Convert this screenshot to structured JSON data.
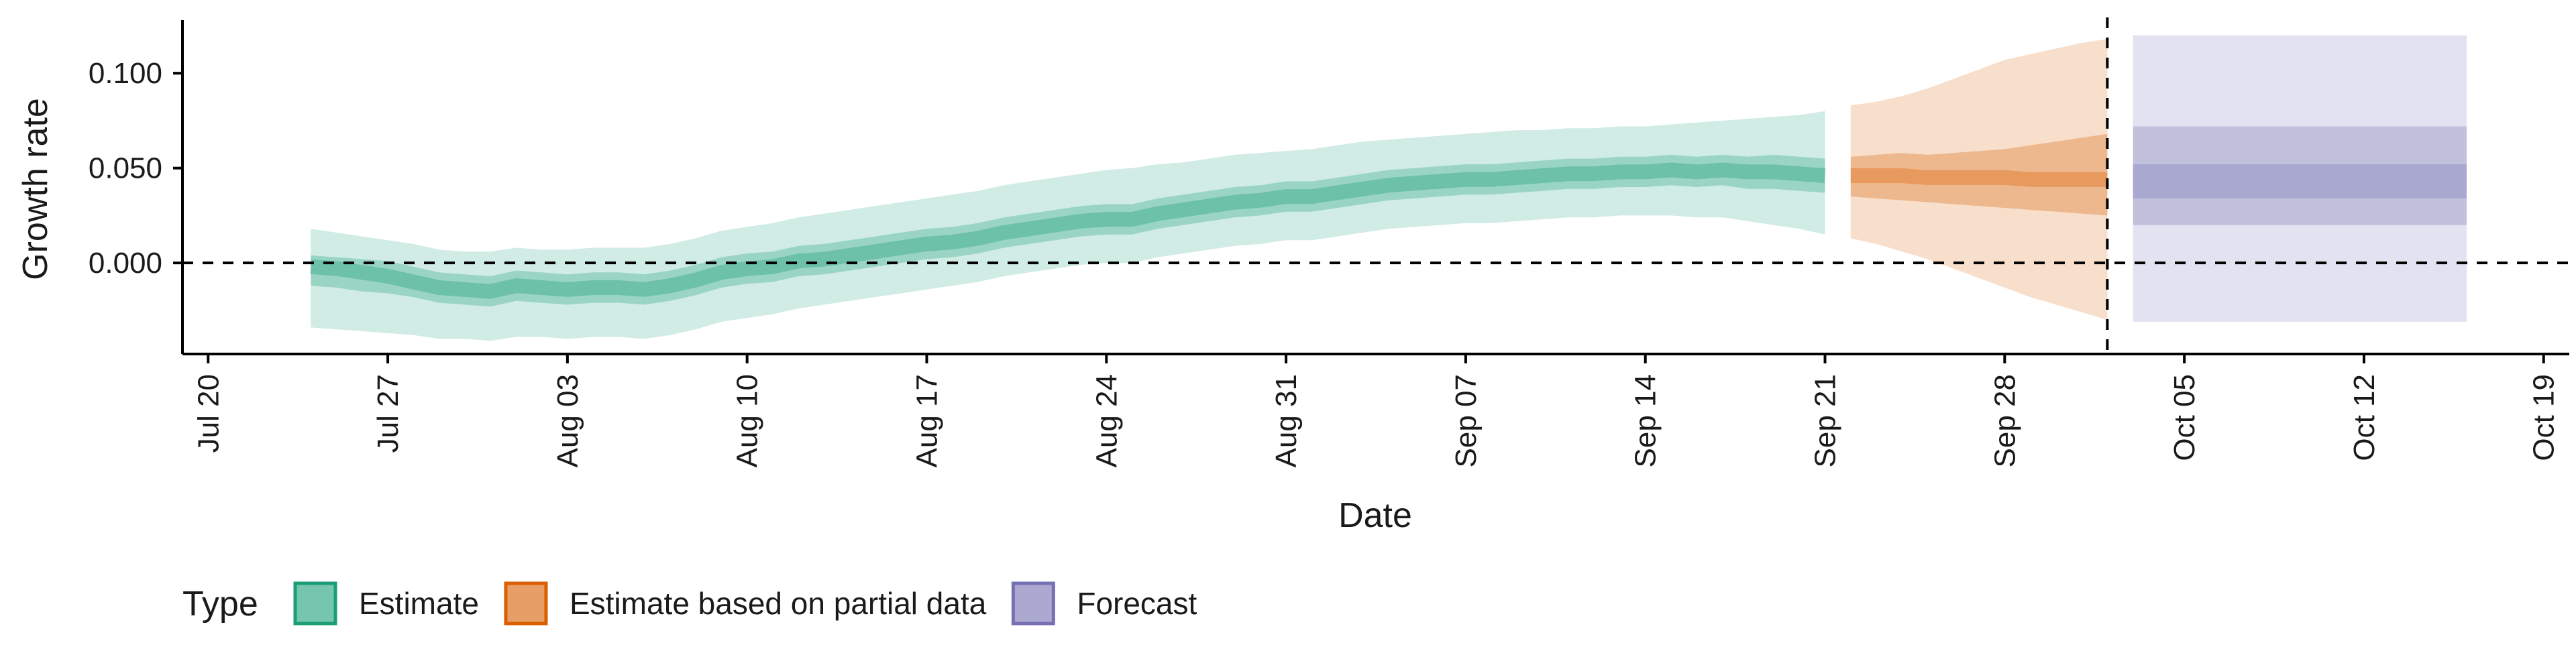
{
  "chart_data": {
    "type": "area",
    "xlabel": "Date",
    "ylabel": "Growth rate",
    "xlim": [
      "2020-07-19",
      "2020-10-20"
    ],
    "ylim": [
      -0.048,
      0.128
    ],
    "x_ticks": [
      "2020-07-20",
      "2020-07-27",
      "2020-08-03",
      "2020-08-10",
      "2020-08-17",
      "2020-08-24",
      "2020-08-31",
      "2020-09-07",
      "2020-09-14",
      "2020-09-21",
      "2020-09-28",
      "2020-10-05",
      "2020-10-12",
      "2020-10-19"
    ],
    "x_tick_labels": [
      "Jul 20",
      "Jul 27",
      "Aug 03",
      "Aug 10",
      "Aug 17",
      "Aug 24",
      "Aug 31",
      "Sep 07",
      "Sep 14",
      "Sep 21",
      "Sep 28",
      "Oct 05",
      "Oct 12",
      "Oct 19"
    ],
    "y_ticks": [
      0.0,
      0.05,
      0.1
    ],
    "y_tick_labels": [
      "0.000",
      "0.050",
      "0.100"
    ],
    "reference_lines": {
      "hline_y": 0,
      "vline_date": "2020-10-02"
    },
    "grid": false,
    "legend": {
      "title": "Type",
      "position": "bottom-left",
      "entries": [
        {
          "label": "Estimate",
          "color": "#1b9e77"
        },
        {
          "label": "Estimate based on partial data",
          "color": "#d95f02"
        },
        {
          "label": "Forecast",
          "color": "#7570b3"
        }
      ]
    },
    "series": [
      {
        "name": "Estimate",
        "color": "#1b9e77",
        "points": [
          {
            "date": "2020-07-24",
            "median": -0.002,
            "lower_90": -0.034,
            "upper_90": 0.018,
            "lower_50": -0.012,
            "upper_50": 0.004
          },
          {
            "date": "2020-07-25",
            "median": -0.003,
            "lower_90": -0.035,
            "upper_90": 0.016,
            "lower_50": -0.013,
            "upper_50": 0.003
          },
          {
            "date": "2020-07-26",
            "median": -0.005,
            "lower_90": -0.036,
            "upper_90": 0.014,
            "lower_50": -0.015,
            "upper_50": 0.002
          },
          {
            "date": "2020-07-27",
            "median": -0.007,
            "lower_90": -0.037,
            "upper_90": 0.012,
            "lower_50": -0.016,
            "upper_50": 0.001
          },
          {
            "date": "2020-07-28",
            "median": -0.01,
            "lower_90": -0.038,
            "upper_90": 0.01,
            "lower_50": -0.018,
            "upper_50": -0.002
          },
          {
            "date": "2020-07-29",
            "median": -0.013,
            "lower_90": -0.04,
            "upper_90": 0.007,
            "lower_50": -0.021,
            "upper_50": -0.005
          },
          {
            "date": "2020-07-30",
            "median": -0.014,
            "lower_90": -0.04,
            "upper_90": 0.006,
            "lower_50": -0.022,
            "upper_50": -0.006
          },
          {
            "date": "2020-07-31",
            "median": -0.015,
            "lower_90": -0.041,
            "upper_90": 0.006,
            "lower_50": -0.023,
            "upper_50": -0.007
          },
          {
            "date": "2020-08-01",
            "median": -0.012,
            "lower_90": -0.039,
            "upper_90": 0.008,
            "lower_50": -0.02,
            "upper_50": -0.004
          },
          {
            "date": "2020-08-02",
            "median": -0.013,
            "lower_90": -0.039,
            "upper_90": 0.007,
            "lower_50": -0.021,
            "upper_50": -0.005
          },
          {
            "date": "2020-08-03",
            "median": -0.014,
            "lower_90": -0.04,
            "upper_90": 0.007,
            "lower_50": -0.022,
            "upper_50": -0.006
          },
          {
            "date": "2020-08-04",
            "median": -0.013,
            "lower_90": -0.039,
            "upper_90": 0.008,
            "lower_50": -0.021,
            "upper_50": -0.005
          },
          {
            "date": "2020-08-05",
            "median": -0.013,
            "lower_90": -0.039,
            "upper_90": 0.008,
            "lower_50": -0.021,
            "upper_50": -0.005
          },
          {
            "date": "2020-08-06",
            "median": -0.014,
            "lower_90": -0.04,
            "upper_90": 0.008,
            "lower_50": -0.022,
            "upper_50": -0.006
          },
          {
            "date": "2020-08-07",
            "median": -0.012,
            "lower_90": -0.038,
            "upper_90": 0.01,
            "lower_50": -0.02,
            "upper_50": -0.004
          },
          {
            "date": "2020-08-08",
            "median": -0.009,
            "lower_90": -0.035,
            "upper_90": 0.013,
            "lower_50": -0.017,
            "upper_50": -0.001
          },
          {
            "date": "2020-08-09",
            "median": -0.005,
            "lower_90": -0.031,
            "upper_90": 0.017,
            "lower_50": -0.013,
            "upper_50": 0.003
          },
          {
            "date": "2020-08-10",
            "median": -0.003,
            "lower_90": -0.029,
            "upper_90": 0.019,
            "lower_50": -0.011,
            "upper_50": 0.005
          },
          {
            "date": "2020-08-11",
            "median": -0.002,
            "lower_90": -0.027,
            "upper_90": 0.021,
            "lower_50": -0.01,
            "upper_50": 0.006
          },
          {
            "date": "2020-08-12",
            "median": 0.001,
            "lower_90": -0.024,
            "upper_90": 0.024,
            "lower_50": -0.007,
            "upper_50": 0.009
          },
          {
            "date": "2020-08-13",
            "median": 0.002,
            "lower_90": -0.022,
            "upper_90": 0.026,
            "lower_50": -0.006,
            "upper_50": 0.01
          },
          {
            "date": "2020-08-14",
            "median": 0.004,
            "lower_90": -0.02,
            "upper_90": 0.028,
            "lower_50": -0.004,
            "upper_50": 0.012
          },
          {
            "date": "2020-08-15",
            "median": 0.006,
            "lower_90": -0.018,
            "upper_90": 0.03,
            "lower_50": -0.002,
            "upper_50": 0.014
          },
          {
            "date": "2020-08-16",
            "median": 0.008,
            "lower_90": -0.016,
            "upper_90": 0.032,
            "lower_50": 0.0,
            "upper_50": 0.016
          },
          {
            "date": "2020-08-17",
            "median": 0.01,
            "lower_90": -0.014,
            "upper_90": 0.034,
            "lower_50": 0.002,
            "upper_50": 0.018
          },
          {
            "date": "2020-08-18",
            "median": 0.011,
            "lower_90": -0.012,
            "upper_90": 0.036,
            "lower_50": 0.003,
            "upper_50": 0.019
          },
          {
            "date": "2020-08-19",
            "median": 0.013,
            "lower_90": -0.01,
            "upper_90": 0.038,
            "lower_50": 0.005,
            "upper_50": 0.021
          },
          {
            "date": "2020-08-20",
            "median": 0.016,
            "lower_90": -0.007,
            "upper_90": 0.041,
            "lower_50": 0.008,
            "upper_50": 0.024
          },
          {
            "date": "2020-08-21",
            "median": 0.018,
            "lower_90": -0.005,
            "upper_90": 0.043,
            "lower_50": 0.01,
            "upper_50": 0.026
          },
          {
            "date": "2020-08-22",
            "median": 0.02,
            "lower_90": -0.003,
            "upper_90": 0.045,
            "lower_50": 0.012,
            "upper_50": 0.028
          },
          {
            "date": "2020-08-23",
            "median": 0.022,
            "lower_90": -0.001,
            "upper_90": 0.047,
            "lower_50": 0.014,
            "upper_50": 0.03
          },
          {
            "date": "2020-08-24",
            "median": 0.023,
            "lower_90": 0.0,
            "upper_90": 0.049,
            "lower_50": 0.015,
            "upper_50": 0.031
          },
          {
            "date": "2020-08-25",
            "median": 0.023,
            "lower_90": 0.0,
            "upper_90": 0.05,
            "lower_50": 0.015,
            "upper_50": 0.031
          },
          {
            "date": "2020-08-26",
            "median": 0.026,
            "lower_90": 0.003,
            "upper_90": 0.052,
            "lower_50": 0.018,
            "upper_50": 0.034
          },
          {
            "date": "2020-08-27",
            "median": 0.028,
            "lower_90": 0.005,
            "upper_90": 0.053,
            "lower_50": 0.02,
            "upper_50": 0.036
          },
          {
            "date": "2020-08-28",
            "median": 0.03,
            "lower_90": 0.007,
            "upper_90": 0.055,
            "lower_50": 0.022,
            "upper_50": 0.038
          },
          {
            "date": "2020-08-29",
            "median": 0.032,
            "lower_90": 0.009,
            "upper_90": 0.057,
            "lower_50": 0.024,
            "upper_50": 0.04
          },
          {
            "date": "2020-08-30",
            "median": 0.033,
            "lower_90": 0.01,
            "upper_90": 0.058,
            "lower_50": 0.025,
            "upper_50": 0.041
          },
          {
            "date": "2020-08-31",
            "median": 0.035,
            "lower_90": 0.012,
            "upper_90": 0.059,
            "lower_50": 0.027,
            "upper_50": 0.043
          },
          {
            "date": "2020-09-01",
            "median": 0.035,
            "lower_90": 0.012,
            "upper_90": 0.06,
            "lower_50": 0.027,
            "upper_50": 0.043
          },
          {
            "date": "2020-09-02",
            "median": 0.037,
            "lower_90": 0.014,
            "upper_90": 0.062,
            "lower_50": 0.029,
            "upper_50": 0.045
          },
          {
            "date": "2020-09-03",
            "median": 0.039,
            "lower_90": 0.016,
            "upper_90": 0.064,
            "lower_50": 0.031,
            "upper_50": 0.047
          },
          {
            "date": "2020-09-04",
            "median": 0.041,
            "lower_90": 0.018,
            "upper_90": 0.065,
            "lower_50": 0.033,
            "upper_50": 0.049
          },
          {
            "date": "2020-09-05",
            "median": 0.042,
            "lower_90": 0.019,
            "upper_90": 0.066,
            "lower_50": 0.034,
            "upper_50": 0.05
          },
          {
            "date": "2020-09-06",
            "median": 0.043,
            "lower_90": 0.02,
            "upper_90": 0.067,
            "lower_50": 0.035,
            "upper_50": 0.051
          },
          {
            "date": "2020-09-07",
            "median": 0.044,
            "lower_90": 0.021,
            "upper_90": 0.068,
            "lower_50": 0.036,
            "upper_50": 0.052
          },
          {
            "date": "2020-09-08",
            "median": 0.044,
            "lower_90": 0.021,
            "upper_90": 0.069,
            "lower_50": 0.036,
            "upper_50": 0.052
          },
          {
            "date": "2020-09-09",
            "median": 0.045,
            "lower_90": 0.022,
            "upper_90": 0.07,
            "lower_50": 0.037,
            "upper_50": 0.053
          },
          {
            "date": "2020-09-10",
            "median": 0.046,
            "lower_90": 0.023,
            "upper_90": 0.07,
            "lower_50": 0.038,
            "upper_50": 0.054
          },
          {
            "date": "2020-09-11",
            "median": 0.047,
            "lower_90": 0.024,
            "upper_90": 0.071,
            "lower_50": 0.039,
            "upper_50": 0.055
          },
          {
            "date": "2020-09-12",
            "median": 0.047,
            "lower_90": 0.024,
            "upper_90": 0.071,
            "lower_50": 0.039,
            "upper_50": 0.055
          },
          {
            "date": "2020-09-13",
            "median": 0.048,
            "lower_90": 0.025,
            "upper_90": 0.072,
            "lower_50": 0.04,
            "upper_50": 0.056
          },
          {
            "date": "2020-09-14",
            "median": 0.048,
            "lower_90": 0.025,
            "upper_90": 0.072,
            "lower_50": 0.04,
            "upper_50": 0.056
          },
          {
            "date": "2020-09-15",
            "median": 0.049,
            "lower_90": 0.025,
            "upper_90": 0.073,
            "lower_50": 0.041,
            "upper_50": 0.057
          },
          {
            "date": "2020-09-16",
            "median": 0.048,
            "lower_90": 0.024,
            "upper_90": 0.074,
            "lower_50": 0.04,
            "upper_50": 0.056
          },
          {
            "date": "2020-09-17",
            "median": 0.049,
            "lower_90": 0.024,
            "upper_90": 0.075,
            "lower_50": 0.041,
            "upper_50": 0.057
          },
          {
            "date": "2020-09-18",
            "median": 0.048,
            "lower_90": 0.022,
            "upper_90": 0.076,
            "lower_50": 0.039,
            "upper_50": 0.056
          },
          {
            "date": "2020-09-19",
            "median": 0.048,
            "lower_90": 0.02,
            "upper_90": 0.077,
            "lower_50": 0.039,
            "upper_50": 0.057
          },
          {
            "date": "2020-09-20",
            "median": 0.047,
            "lower_90": 0.018,
            "upper_90": 0.078,
            "lower_50": 0.038,
            "upper_50": 0.056
          },
          {
            "date": "2020-09-21",
            "median": 0.046,
            "lower_90": 0.015,
            "upper_90": 0.08,
            "lower_50": 0.037,
            "upper_50": 0.055
          }
        ]
      },
      {
        "name": "Estimate based on partial data",
        "color": "#d95f02",
        "points": [
          {
            "date": "2020-09-22",
            "median": 0.046,
            "lower_90": 0.013,
            "upper_90": 0.083,
            "lower_50": 0.035,
            "upper_50": 0.056
          },
          {
            "date": "2020-09-23",
            "median": 0.046,
            "lower_90": 0.01,
            "upper_90": 0.085,
            "lower_50": 0.034,
            "upper_50": 0.057
          },
          {
            "date": "2020-09-24",
            "median": 0.046,
            "lower_90": 0.006,
            "upper_90": 0.088,
            "lower_50": 0.033,
            "upper_50": 0.058
          },
          {
            "date": "2020-09-25",
            "median": 0.045,
            "lower_90": 0.002,
            "upper_90": 0.092,
            "lower_50": 0.032,
            "upper_50": 0.057
          },
          {
            "date": "2020-09-26",
            "median": 0.045,
            "lower_90": -0.003,
            "upper_90": 0.097,
            "lower_50": 0.031,
            "upper_50": 0.058
          },
          {
            "date": "2020-09-27",
            "median": 0.045,
            "lower_90": -0.008,
            "upper_90": 0.102,
            "lower_50": 0.03,
            "upper_50": 0.059
          },
          {
            "date": "2020-09-28",
            "median": 0.045,
            "lower_90": -0.013,
            "upper_90": 0.107,
            "lower_50": 0.029,
            "upper_50": 0.06
          },
          {
            "date": "2020-09-29",
            "median": 0.044,
            "lower_90": -0.018,
            "upper_90": 0.11,
            "lower_50": 0.028,
            "upper_50": 0.062
          },
          {
            "date": "2020-09-30",
            "median": 0.044,
            "lower_90": -0.022,
            "upper_90": 0.113,
            "lower_50": 0.027,
            "upper_50": 0.064
          },
          {
            "date": "2020-10-01",
            "median": 0.044,
            "lower_90": -0.026,
            "upper_90": 0.116,
            "lower_50": 0.026,
            "upper_50": 0.066
          },
          {
            "date": "2020-10-02",
            "median": 0.044,
            "lower_90": -0.03,
            "upper_90": 0.118,
            "lower_50": 0.025,
            "upper_50": 0.068
          }
        ]
      },
      {
        "name": "Forecast",
        "color": "#7570b3",
        "points": [
          {
            "date": "2020-10-03",
            "median": 0.043,
            "lower_90": -0.031,
            "upper_90": 0.12,
            "lower_50": 0.02,
            "upper_50": 0.072,
            "lower_20": 0.034,
            "upper_20": 0.052
          },
          {
            "date": "2020-10-16",
            "median": 0.043,
            "lower_90": -0.031,
            "upper_90": 0.12,
            "lower_50": 0.02,
            "upper_50": 0.072,
            "lower_20": 0.034,
            "upper_20": 0.052
          }
        ]
      }
    ]
  }
}
